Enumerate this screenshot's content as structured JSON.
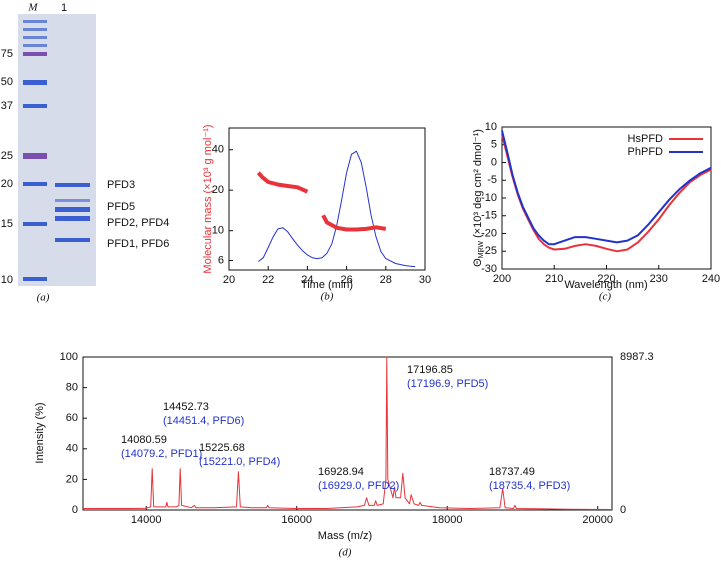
{
  "gel": {
    "lanes": [
      "M",
      "1"
    ],
    "markers": [
      75,
      50,
      37,
      25,
      20,
      15,
      10
    ],
    "bands": [
      "PFD3",
      "PFD5",
      "PFD2, PFD4",
      "PFD1, PFD6"
    ],
    "caption": "(a)"
  },
  "chart_data": [
    {
      "type": "line",
      "caption": "(b)",
      "x_label": "Time (min)",
      "y_label": "Molecular mass (×10³ g mol⁻¹)",
      "y_label_color": "#e8333a",
      "xlim": [
        20,
        30
      ],
      "xticks": [
        20,
        22,
        24,
        26,
        28,
        30
      ],
      "ylim": [
        5.1,
        58
      ],
      "yticks": [
        6,
        10,
        20,
        40
      ],
      "y_log": true,
      "series": [
        {
          "color": "#2233cc",
          "line_width": 1,
          "x": [
            21.5,
            21.75,
            22.0,
            22.25,
            22.5,
            22.75,
            23.0,
            23.25,
            23.5,
            23.75,
            24.0,
            24.25,
            24.5,
            24.75,
            25.0,
            25.25,
            25.5,
            25.75,
            26.0,
            26.25,
            26.5,
            26.75,
            27.0,
            27.25,
            27.5,
            27.75,
            28.0,
            28.5,
            29.0,
            29.5
          ],
          "values": [
            5.9,
            6.3,
            7.5,
            9.0,
            10.3,
            10.5,
            9.8,
            8.7,
            7.8,
            7.1,
            6.6,
            6.3,
            6.2,
            6.3,
            6.8,
            8.0,
            11,
            17,
            27,
            37,
            39,
            32,
            21,
            13,
            9,
            7,
            6.2,
            5.7,
            5.5,
            5.4
          ]
        },
        {
          "color": "#e8333a",
          "line_width": 4,
          "x": [
            21.5,
            21.7,
            22.0,
            22.5,
            23.0,
            23.5,
            24.0,
            24.4,
            24.8,
            25.0,
            25.5,
            26.0,
            26.5,
            27.0,
            27.5,
            28.0
          ],
          "values": [
            27,
            25,
            23,
            22,
            21.5,
            21,
            19.5,
            null,
            13,
            11.5,
            10.5,
            10.2,
            10.2,
            10.3,
            10.6,
            10.3
          ]
        }
      ]
    },
    {
      "type": "line",
      "caption": "(c)",
      "x_label": "Wavelength (nm)",
      "y_label": "Θ",
      "y_label_sub": "MRW",
      "y_label_unit": " (×10³ deg cm² dmol⁻¹)",
      "xlim": [
        200,
        240
      ],
      "xticks": [
        200,
        210,
        220,
        230,
        240
      ],
      "ylim": [
        -30,
        10
      ],
      "yticks": [
        -30,
        -25,
        -20,
        -15,
        -10,
        -5,
        0,
        5,
        10
      ],
      "legend": "top-right",
      "x": [
        200,
        201,
        202,
        203,
        204,
        205,
        206,
        207,
        208,
        209,
        210,
        212,
        214,
        216,
        218,
        220,
        222,
        224,
        226,
        228,
        230,
        232,
        234,
        236,
        238,
        240
      ],
      "series": [
        {
          "name": "HsPFD",
          "color": "#e8333a",
          "line_width": 2,
          "values": [
            8,
            2,
            -4,
            -9,
            -13,
            -16,
            -19,
            -21.5,
            -23,
            -24,
            -24.5,
            -24.3,
            -23.5,
            -23,
            -23.5,
            -24.3,
            -25,
            -24.5,
            -22.5,
            -19.5,
            -16,
            -12,
            -8.5,
            -5.5,
            -3.5,
            -2
          ]
        },
        {
          "name": "PhPFD",
          "color": "#2233cc",
          "line_width": 2,
          "values": [
            9,
            3,
            -3.5,
            -8.5,
            -12.5,
            -15.5,
            -18.5,
            -20.5,
            -22,
            -23,
            -23,
            -22,
            -21,
            -21,
            -21.5,
            -22,
            -22.5,
            -22,
            -20.5,
            -17.5,
            -14,
            -10.5,
            -7.5,
            -5,
            -3,
            -1.5
          ]
        }
      ]
    },
    {
      "type": "line",
      "caption": "(d)",
      "x_label": "Mass (m/z)",
      "y_label": "Intensity (%)",
      "xlim": [
        13160,
        20190
      ],
      "xticks": [
        14000,
        16000,
        18000,
        20000
      ],
      "ylim": [
        0,
        100
      ],
      "yticks": [
        0,
        20,
        40,
        60,
        80,
        100
      ],
      "y2lim": [
        0,
        8987.3
      ],
      "y2ticks": [
        0,
        8987.3
      ],
      "annotations": [
        [
          "17196.85",
          "(17196.9, PFD5)"
        ],
        [
          "14452.73",
          "(14451.4, PFD6)"
        ],
        [
          "14080.59",
          "(14079.2, PFD1)"
        ],
        [
          "15225.68",
          "(15221.0, PFD4)"
        ],
        [
          "16928.94",
          "(16929.0, PFD2)"
        ],
        [
          "18737.49",
          "(18735.4, PFD3)"
        ]
      ],
      "x": [
        13160,
        13500,
        13800,
        14000,
        14060,
        14080,
        14100,
        14200,
        14260,
        14275,
        14290,
        14400,
        14435,
        14452,
        14470,
        14600,
        14640,
        14660,
        14900,
        15200,
        15225,
        15250,
        15400,
        15600,
        15615,
        15630,
        16000,
        16400,
        16800,
        16900,
        16929,
        16960,
        17030,
        17050,
        17070,
        17150,
        17185,
        17197,
        17210,
        17280,
        17300,
        17320,
        17380,
        17410,
        17440,
        17500,
        17520,
        17560,
        17620,
        17640,
        17660,
        17900,
        18300,
        18700,
        18737,
        18770,
        18880,
        18900,
        18920,
        19200,
        19600,
        20190
      ],
      "series": [
        {
          "color": "#e8333a",
          "line_width": 1,
          "values": [
            1,
            1,
            1,
            1.2,
            2,
            27,
            2,
            2,
            2,
            5,
            2,
            2,
            3,
            27,
            3,
            1.5,
            3,
            1.5,
            1.5,
            2,
            25,
            2,
            1.5,
            1.5,
            3,
            1.5,
            1,
            1,
            2,
            3,
            8,
            3,
            3,
            6,
            3,
            4,
            20,
            100,
            20,
            8,
            15,
            8,
            8,
            24,
            8,
            4,
            10,
            4,
            3,
            5,
            3,
            1.5,
            1,
            1.5,
            14,
            1.5,
            1,
            3,
            1,
            0.8,
            0.5,
            0.3
          ]
        }
      ]
    }
  ]
}
